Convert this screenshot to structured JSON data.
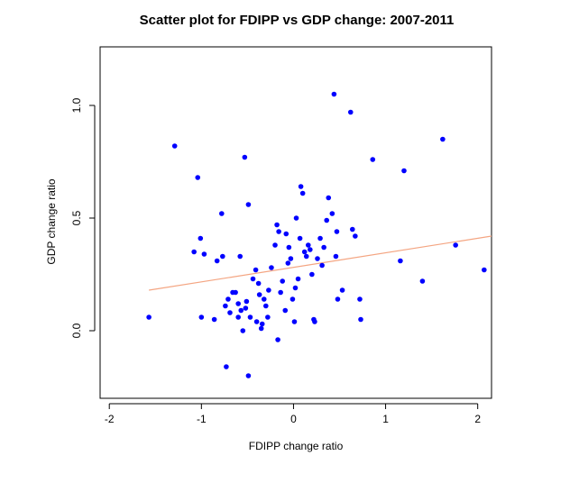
{
  "chart_data": {
    "type": "scatter",
    "title": "Scatter plot for FDIPP vs GDP change: 2007-2011",
    "xlabel": "FDIPP change ratio",
    "ylabel": "GDP change ratio",
    "xlim": [
      -2.1,
      2.15
    ],
    "ylim": [
      -0.3,
      1.26
    ],
    "xticks": [
      {
        "value": -2,
        "label": "-2"
      },
      {
        "value": -1,
        "label": "-1"
      },
      {
        "value": 0,
        "label": "0"
      },
      {
        "value": 1,
        "label": "1"
      },
      {
        "value": 2,
        "label": "2"
      }
    ],
    "yticks": [
      {
        "value": 0.0,
        "label": "0.0"
      },
      {
        "value": 0.5,
        "label": "0.5"
      },
      {
        "value": 1.0,
        "label": "1.0"
      }
    ],
    "grid": false,
    "point_color": "#0000ff",
    "trend_color": "#f4a582",
    "trend_line": {
      "x": [
        -1.57,
        2.15
      ],
      "y": [
        0.18,
        0.42
      ]
    },
    "points": [
      [
        -1.57,
        0.06
      ],
      [
        -1.29,
        0.82
      ],
      [
        -1.08,
        0.35
      ],
      [
        -1.04,
        0.68
      ],
      [
        -1.01,
        0.41
      ],
      [
        -1.0,
        0.06
      ],
      [
        -0.97,
        0.34
      ],
      [
        -0.86,
        0.05
      ],
      [
        -0.83,
        0.31
      ],
      [
        -0.78,
        0.52
      ],
      [
        -0.77,
        0.33
      ],
      [
        -0.74,
        0.11
      ],
      [
        -0.73,
        -0.16
      ],
      [
        -0.71,
        0.14
      ],
      [
        -0.69,
        0.08
      ],
      [
        -0.66,
        0.17
      ],
      [
        -0.63,
        0.17
      ],
      [
        -0.6,
        0.12
      ],
      [
        -0.6,
        0.06
      ],
      [
        -0.58,
        0.33
      ],
      [
        -0.57,
        0.09
      ],
      [
        -0.55,
        0.0
      ],
      [
        -0.53,
        0.77
      ],
      [
        -0.52,
        0.1
      ],
      [
        -0.51,
        0.13
      ],
      [
        -0.49,
        0.56
      ],
      [
        -0.49,
        -0.2
      ],
      [
        -0.47,
        0.06
      ],
      [
        -0.44,
        0.23
      ],
      [
        -0.41,
        0.27
      ],
      [
        -0.4,
        0.04
      ],
      [
        -0.38,
        0.21
      ],
      [
        -0.37,
        0.16
      ],
      [
        -0.35,
        0.01
      ],
      [
        -0.34,
        0.03
      ],
      [
        -0.32,
        0.14
      ],
      [
        -0.3,
        0.11
      ],
      [
        -0.28,
        0.06
      ],
      [
        -0.27,
        0.18
      ],
      [
        -0.24,
        0.28
      ],
      [
        -0.2,
        0.38
      ],
      [
        -0.18,
        0.47
      ],
      [
        -0.17,
        -0.04
      ],
      [
        -0.16,
        0.44
      ],
      [
        -0.14,
        0.17
      ],
      [
        -0.12,
        0.22
      ],
      [
        -0.09,
        0.09
      ],
      [
        -0.08,
        0.43
      ],
      [
        -0.06,
        0.3
      ],
      [
        -0.05,
        0.37
      ],
      [
        -0.03,
        0.32
      ],
      [
        -0.01,
        0.14
      ],
      [
        0.01,
        0.04
      ],
      [
        0.02,
        0.19
      ],
      [
        0.03,
        0.5
      ],
      [
        0.05,
        0.23
      ],
      [
        0.07,
        0.41
      ],
      [
        0.08,
        0.64
      ],
      [
        0.1,
        0.61
      ],
      [
        0.12,
        0.35
      ],
      [
        0.14,
        0.33
      ],
      [
        0.16,
        0.38
      ],
      [
        0.18,
        0.36
      ],
      [
        0.2,
        0.25
      ],
      [
        0.22,
        0.05
      ],
      [
        0.23,
        0.04
      ],
      [
        0.26,
        0.32
      ],
      [
        0.29,
        0.41
      ],
      [
        0.31,
        0.29
      ],
      [
        0.33,
        0.37
      ],
      [
        0.36,
        0.49
      ],
      [
        0.38,
        0.59
      ],
      [
        0.42,
        0.52
      ],
      [
        0.44,
        1.05
      ],
      [
        0.46,
        0.33
      ],
      [
        0.47,
        0.44
      ],
      [
        0.48,
        0.14
      ],
      [
        0.53,
        0.18
      ],
      [
        0.62,
        0.97
      ],
      [
        0.64,
        0.45
      ],
      [
        0.67,
        0.42
      ],
      [
        0.72,
        0.14
      ],
      [
        0.73,
        0.05
      ],
      [
        0.86,
        0.76
      ],
      [
        1.16,
        0.31
      ],
      [
        1.2,
        0.71
      ],
      [
        1.4,
        0.22
      ],
      [
        1.62,
        0.85
      ],
      [
        1.76,
        0.38
      ],
      [
        2.07,
        0.27
      ]
    ]
  }
}
